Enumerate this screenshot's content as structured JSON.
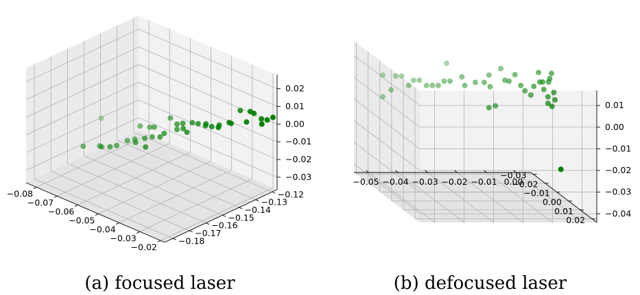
{
  "chart_data": [
    {
      "type": "scatter",
      "dimensions": 3,
      "caption": "(a) focused laser",
      "color": "#008000",
      "depthshade": true,
      "xticks": [
        "−0.08",
        "−0.07",
        "−0.06",
        "−0.05",
        "−0.04",
        "−0.03",
        "−0.02"
      ],
      "yticks": [
        "−0.18",
        "−0.17",
        "−0.16",
        "−0.15",
        "−0.14",
        "−0.13",
        "−0.12"
      ],
      "zticks": [
        "−0.03",
        "−0.02",
        "−0.01",
        "0.00",
        "0.01",
        "0.02"
      ],
      "xlim": [
        -0.085,
        -0.018
      ],
      "ylim": [
        -0.185,
        -0.117
      ],
      "zlim": [
        -0.037,
        0.028
      ],
      "points": [
        [
          -0.075,
          -0.152,
          -0.01
        ],
        [
          -0.075,
          -0.163,
          -0.021
        ],
        [
          -0.071,
          -0.158,
          -0.021
        ],
        [
          -0.07,
          -0.158,
          -0.021
        ],
        [
          -0.066,
          -0.154,
          -0.02
        ],
        [
          -0.064,
          -0.15,
          -0.018
        ],
        [
          -0.062,
          -0.148,
          -0.017
        ],
        [
          -0.06,
          -0.15,
          -0.017
        ],
        [
          -0.058,
          -0.147,
          -0.015
        ],
        [
          -0.061,
          -0.146,
          -0.01
        ],
        [
          -0.058,
          -0.144,
          -0.01
        ],
        [
          -0.056,
          -0.145,
          -0.014
        ],
        [
          -0.053,
          -0.144,
          -0.013
        ],
        [
          -0.055,
          -0.145,
          -0.008
        ],
        [
          -0.051,
          -0.144,
          -0.01
        ],
        [
          -0.052,
          -0.139,
          -0.004
        ],
        [
          -0.048,
          -0.14,
          -0.005
        ],
        [
          -0.048,
          -0.14,
          -0.008
        ],
        [
          -0.046,
          -0.139,
          -0.004
        ],
        [
          -0.043,
          -0.137,
          -0.003
        ],
        [
          -0.044,
          -0.139,
          -0.008
        ],
        [
          -0.041,
          -0.136,
          -0.003
        ],
        [
          -0.039,
          -0.134,
          -0.004
        ],
        [
          -0.038,
          -0.135,
          -0.002
        ],
        [
          -0.036,
          -0.134,
          -0.003
        ],
        [
          -0.034,
          -0.132,
          -0.002
        ],
        [
          -0.03,
          -0.131,
          0.001
        ],
        [
          -0.029,
          -0.131,
          0.001
        ],
        [
          -0.027,
          -0.128,
          0.008
        ],
        [
          -0.023,
          -0.127,
          0.009
        ],
        [
          -0.022,
          -0.126,
          0.008
        ],
        [
          -0.02,
          -0.124,
          0.005
        ],
        [
          -0.018,
          -0.123,
          0.005
        ],
        [
          -0.019,
          -0.125,
          0.003
        ],
        [
          -0.016,
          -0.122,
          0.007
        ],
        [
          -0.024,
          -0.128,
          0.003
        ],
        [
          -0.032,
          -0.135,
          -0.001
        ],
        [
          -0.045,
          -0.14,
          -0.006
        ],
        [
          -0.056,
          -0.149,
          -0.018
        ],
        [
          -0.066,
          -0.158,
          -0.019
        ]
      ]
    },
    {
      "type": "scatter",
      "dimensions": 3,
      "caption": "(b) defocused laser",
      "color": "#008000",
      "depthshade": true,
      "xticks": [
        "−0.05",
        "−0.04",
        "−0.03",
        "−0.02",
        "−0.01",
        "0.00"
      ],
      "yticks": [
        "−0.03",
        "−0.02",
        "−0.01",
        "0.00",
        "0.01",
        "0.02"
      ],
      "zticks": [
        "−0.04",
        "−0.03",
        "−0.02",
        "−0.01",
        "0.00",
        "0.01"
      ],
      "xlim": [
        -0.055,
        0.005
      ],
      "ylim": [
        -0.032,
        0.024
      ],
      "zlim": [
        -0.044,
        0.017
      ],
      "points": [
        [
          -0.052,
          -0.015,
          0.008
        ],
        [
          -0.052,
          -0.015,
          -0.002
        ],
        [
          -0.05,
          -0.013,
          0.002
        ],
        [
          -0.048,
          -0.014,
          0.008
        ],
        [
          -0.046,
          -0.014,
          0.008
        ],
        [
          -0.044,
          -0.013,
          0.004
        ],
        [
          -0.042,
          -0.014,
          0.006
        ],
        [
          -0.04,
          -0.014,
          0.006
        ],
        [
          -0.038,
          -0.013,
          0.004
        ],
        [
          -0.036,
          -0.013,
          0.004
        ],
        [
          -0.034,
          -0.013,
          0.004
        ],
        [
          -0.032,
          -0.013,
          0.006
        ],
        [
          -0.03,
          -0.013,
          0.006
        ],
        [
          -0.03,
          -0.016,
          0.013
        ],
        [
          -0.026,
          -0.013,
          0.008
        ],
        [
          -0.025,
          -0.013,
          0.004
        ],
        [
          -0.021,
          -0.014,
          0.005
        ],
        [
          -0.018,
          -0.014,
          0.005
        ],
        [
          -0.016,
          -0.015,
          0.008
        ],
        [
          -0.016,
          -0.014,
          0.003
        ],
        [
          -0.018,
          -0.01,
          -0.005
        ],
        [
          -0.015,
          -0.012,
          -0.005
        ],
        [
          -0.012,
          -0.015,
          0.011
        ],
        [
          -0.011,
          -0.014,
          0.006
        ],
        [
          -0.01,
          -0.013,
          0.006
        ],
        [
          -0.008,
          -0.013,
          0.009
        ],
        [
          -0.006,
          -0.013,
          0.004
        ],
        [
          -0.005,
          -0.012,
          0.002
        ],
        [
          -0.003,
          -0.012,
          0.0
        ],
        [
          -0.002,
          -0.012,
          0.004
        ],
        [
          0.0,
          -0.012,
          0.006
        ],
        [
          0.0,
          -0.013,
          0.01
        ],
        [
          0.001,
          -0.012,
          0.006
        ],
        [
          0.001,
          -0.011,
          0.003
        ],
        [
          0.002,
          -0.01,
          0.0
        ],
        [
          0.003,
          -0.011,
          0.008
        ],
        [
          0.003,
          -0.012,
          0.006
        ],
        [
          0.004,
          -0.012,
          0.01
        ],
        [
          0.004,
          -0.01,
          0.002
        ],
        [
          0.003,
          -0.009,
          -0.004
        ],
        [
          0.002,
          -0.01,
          -0.003
        ],
        [
          0.004,
          -0.009,
          -0.001
        ],
        [
          0.004,
          -0.004,
          -0.031
        ]
      ]
    }
  ]
}
